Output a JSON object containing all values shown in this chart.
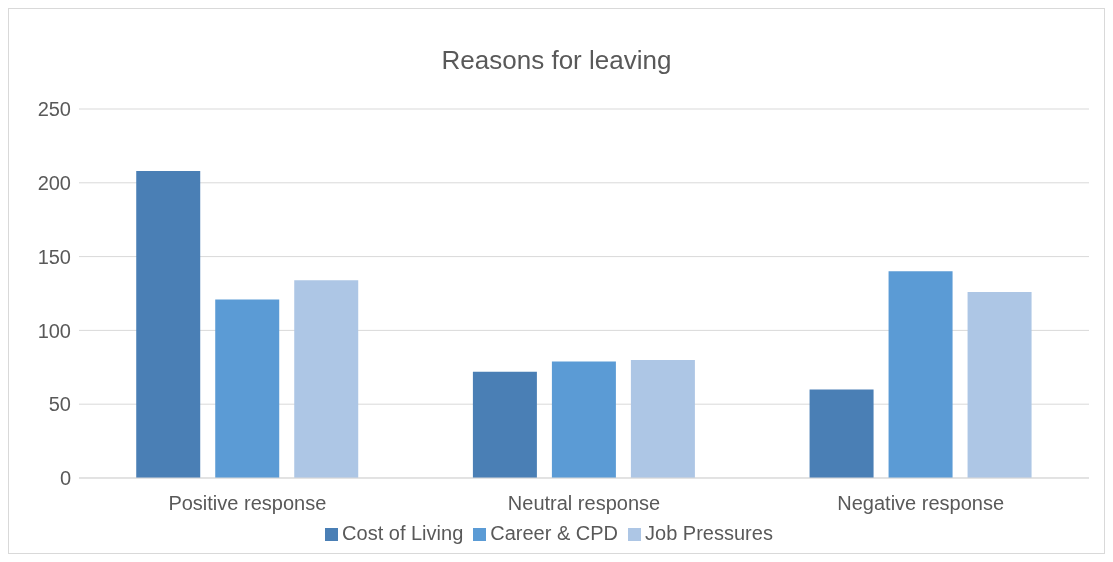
{
  "chart_data": {
    "type": "bar",
    "title": "Reasons for leaving",
    "categories": [
      "Positive response",
      "Neutral response",
      "Negative response"
    ],
    "series": [
      {
        "name": "Cost of Living",
        "color": "#4a7fb5",
        "values": [
          208,
          72,
          60
        ]
      },
      {
        "name": "Career & CPD",
        "color": "#5b9bd5",
        "values": [
          121,
          79,
          140
        ]
      },
      {
        "name": "Job Pressures",
        "color": "#adc6e5",
        "values": [
          134,
          80,
          126
        ]
      }
    ],
    "ylim": [
      0,
      250
    ],
    "yticks": [
      0,
      50,
      100,
      150,
      200,
      250
    ],
    "grid": "y",
    "legend": "bottom"
  }
}
